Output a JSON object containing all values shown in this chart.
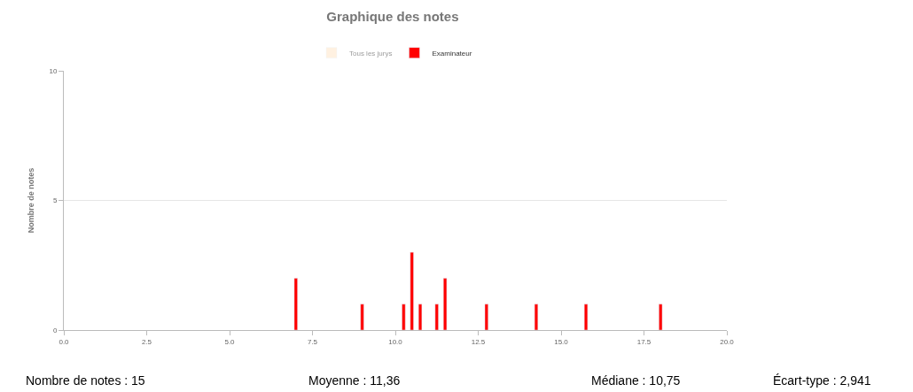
{
  "chart_data": {
    "type": "bar",
    "title": "Graphique des notes",
    "ylabel": "Nombre de notes",
    "x": [
      7.0,
      9.0,
      10.25,
      10.5,
      10.75,
      11.25,
      11.5,
      12.75,
      14.25,
      15.75,
      18.0
    ],
    "series": [
      {
        "name": "Tous les jurys",
        "color": "#ffe4c4",
        "values": [
          null,
          null,
          null,
          null,
          null,
          null,
          null,
          null,
          null,
          null,
          null
        ]
      },
      {
        "name": "Examinateur",
        "color": "#ff0000",
        "values": [
          2,
          1,
          1,
          3,
          1,
          1,
          2,
          1,
          1,
          1,
          1
        ]
      }
    ],
    "xlim": [
      0,
      20
    ],
    "xticks": [
      {
        "value": 0,
        "label": "0.0"
      },
      {
        "value": 2.5,
        "label": "2.5"
      },
      {
        "value": 5,
        "label": "5.0"
      },
      {
        "value": 7.5,
        "label": "7.5"
      },
      {
        "value": 10,
        "label": "10.0"
      },
      {
        "value": 12.5,
        "label": "12.5"
      },
      {
        "value": 15,
        "label": "15.0"
      },
      {
        "value": 17.5,
        "label": "17.5"
      },
      {
        "value": 20,
        "label": "20.0"
      }
    ],
    "ylim": [
      0,
      10
    ],
    "yticks": [
      0,
      5,
      10
    ],
    "grid": "y",
    "legend": "top",
    "annotations": [
      "Nombre de notes : 15",
      "Moyenne : 11,36",
      "Médiane : 10,75",
      "Écart-type : 2,941"
    ]
  }
}
